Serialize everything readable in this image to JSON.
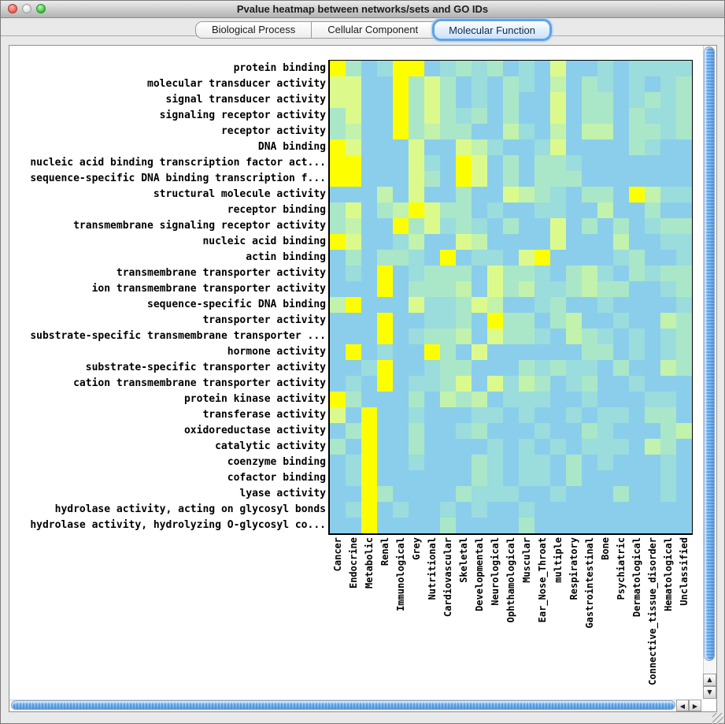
{
  "window": {
    "title": "Pvalue heatmap between networks/sets and GO IDs"
  },
  "tabs": [
    {
      "label": "Biological Process",
      "selected": false
    },
    {
      "label": "Cellular Component",
      "selected": false
    },
    {
      "label": "Molecular Function",
      "selected": true
    }
  ],
  "scrollbars": {
    "up_arrow": "▲",
    "down_arrow": "▼",
    "left_arrow": "◀",
    "right_arrow": "▶"
  },
  "chart_data": {
    "type": "heatmap",
    "title": "Pvalue heatmap between networks/sets and GO IDs",
    "rows": [
      "protein binding",
      "molecular transducer activity",
      "signal transducer activity",
      "signaling receptor activity",
      "receptor activity",
      "DNA binding",
      "nucleic acid binding transcription factor act...",
      "sequence-specific DNA binding transcription f...",
      "structural molecule activity",
      "receptor binding",
      "transmembrane signaling receptor activity",
      "nucleic acid binding",
      "actin binding",
      "transmembrane transporter activity",
      "ion transmembrane transporter activity",
      "sequence-specific DNA binding",
      "transporter activity",
      "substrate-specific transmembrane transporter ...",
      "hormone activity",
      "substrate-specific transporter activity",
      "cation transmembrane transporter activity",
      "protein kinase activity",
      "transferase activity",
      "oxidoreductase activity",
      "catalytic activity",
      "coenzyme binding",
      "cofactor binding",
      "lyase activity",
      "hydrolase activity, acting on glycosyl bonds",
      "hydrolase activity, hydrolyzing O-glycosyl co..."
    ],
    "columns": [
      "Cancer",
      "Endocrine",
      "Metabolic",
      "Renal",
      "Immunological",
      "Grey",
      "Nutritional",
      "Cardiovascular",
      "Skeletal",
      "Developmental",
      "Neurological",
      "Ophthamological",
      "Muscular",
      "Ear_Nose_Throat",
      "multiple",
      "Respiratory",
      "Gastrointestinal",
      "Bone",
      "Psychiatric",
      "Dermatological",
      "Connective_tissue_disorder",
      "Hematological",
      "Unclassified"
    ],
    "palette": [
      "#8BCEEC",
      "#9BDCDC",
      "#AAE7C8",
      "#C2F2AB",
      "#DCFA8C",
      "#FDFF00"
    ],
    "values": [
      "52015501212010400101111",
      "44005242010210302101012",
      "44005242010200402201212",
      "24005242120200402202112",
      "23005232200310303302212",
      "54000400431001400002100",
      "55000410540202210000000",
      "55000420540202220000000",
      "00030400200432102205311",
      "24023542201001100300200",
      "23005241210200402020122",
      "54001300430000400030011",
      "02022105011045000012001",
      "01050122204221023102122",
      "00050222304231123220012",
      "35000411243001200100001",
      "00050011205220230010032",
      "00050122304221032101012",
      "05010052040000002201012",
      "00150012200021211020032",
      "01050112404132012001000",
      "52000203230111001000110",
      "40500100011010010110220",
      "02500200120001002100023",
      "20500200001010101110320",
      "01500100021011020100010",
      "01500000021011020000010",
      "00520000211100100020010",
      "01501001010010000000000",
      "00500002000020000000000"
    ]
  }
}
